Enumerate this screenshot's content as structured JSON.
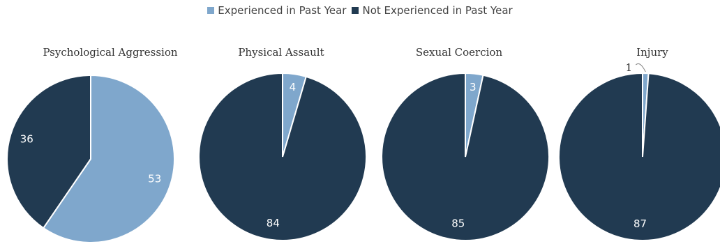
{
  "legend": {
    "experienced": "Experienced in Past Year",
    "not_experienced": "Not Experienced in Past Year"
  },
  "colors": {
    "experienced": "#7FA7CC",
    "not_experienced": "#213A51",
    "stroke": "#ffffff"
  },
  "chart_data": [
    {
      "type": "pie",
      "title": "Psychological Aggression",
      "categories": [
        "Experienced in Past Year",
        "Not Experienced in Past Year"
      ],
      "values": [
        53,
        36
      ]
    },
    {
      "type": "pie",
      "title": "Physical Assault",
      "categories": [
        "Experienced in Past Year",
        "Not Experienced in Past Year"
      ],
      "values": [
        4,
        84
      ]
    },
    {
      "type": "pie",
      "title": "Sexual Coercion",
      "categories": [
        "Experienced in Past Year",
        "Not Experienced in Past Year"
      ],
      "values": [
        3,
        85
      ]
    },
    {
      "type": "pie",
      "title": "Injury",
      "categories": [
        "Experienced in Past Year",
        "Not Experienced in Past Year"
      ],
      "values": [
        1,
        87
      ]
    }
  ]
}
